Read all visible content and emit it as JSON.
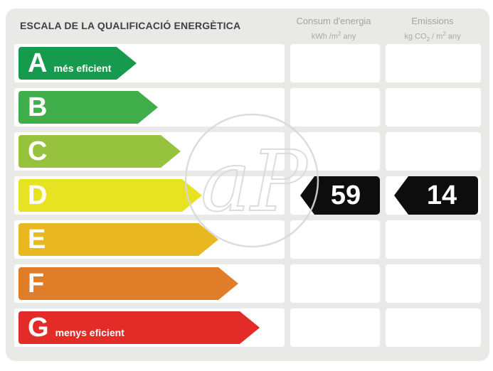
{
  "header": {
    "title": "ESCALA DE LA QUALIFICACIÓ ENERGÈTICA",
    "columns": [
      {
        "name": "Consum d'energia",
        "unit": {
          "pre": "kWh /m",
          "sup": "2",
          "post": " any"
        }
      },
      {
        "name": "Emissions",
        "unit": {
          "pre": "kg CO",
          "sub": "2",
          "mid": " / m",
          "sup": "2",
          "post": " any"
        }
      }
    ]
  },
  "scale": {
    "rows": [
      {
        "grade": "A",
        "label": "més eficient",
        "color": "#169b4e",
        "arrow_width": 166
      },
      {
        "grade": "B",
        "label": "",
        "color": "#40ae4a",
        "arrow_width": 196
      },
      {
        "grade": "C",
        "label": "",
        "color": "#96c23d",
        "arrow_width": 228
      },
      {
        "grade": "D",
        "label": "",
        "color": "#e8e322",
        "arrow_width": 258
      },
      {
        "grade": "E",
        "label": "",
        "color": "#e9b820",
        "arrow_width": 281
      },
      {
        "grade": "F",
        "label": "",
        "color": "#e07d28",
        "arrow_width": 309
      },
      {
        "grade": "G",
        "label": "menys eficient",
        "color": "#e32b27",
        "arrow_width": 339
      }
    ],
    "rating_grade": "D"
  },
  "values": {
    "consum": "59",
    "emissions": "14",
    "arrow_color": "#0d0d0d"
  },
  "watermark": {
    "text": "aP"
  },
  "colors": {
    "panel_bg": "#e9e9e8",
    "cell_bg": "#ffffff",
    "title_text": "#404042",
    "column_header_text": "#a3a3a3",
    "watermark_stroke": "#d9d9d9"
  },
  "chart_data": {
    "type": "bar",
    "title": "ESCALA DE LA QUALIFICACIÓ ENERGÈTICA",
    "categories": [
      "A",
      "B",
      "C",
      "D",
      "E",
      "F",
      "G"
    ],
    "category_colors": [
      "#169b4e",
      "#40ae4a",
      "#96c23d",
      "#e8e322",
      "#e9b820",
      "#e07d28",
      "#e32b27"
    ],
    "annotations": [
      "A = més eficient",
      "G = menys eficient"
    ],
    "rated_category": "D",
    "series": [
      {
        "name": "Consum d'energia (kWh/m2 any)",
        "values": [
          null,
          null,
          null,
          59,
          null,
          null,
          null
        ]
      },
      {
        "name": "Emissions (kg CO2/m2 any)",
        "values": [
          null,
          null,
          null,
          14,
          null,
          null,
          null
        ]
      }
    ],
    "legend_position": "top",
    "grid": false
  }
}
